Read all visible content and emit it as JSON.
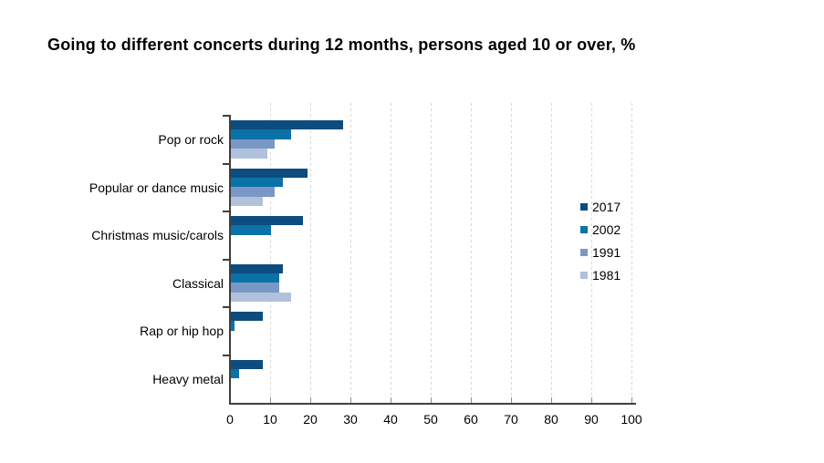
{
  "page": {
    "background": "#ffffff"
  },
  "chart_data": {
    "type": "bar",
    "orientation": "horizontal",
    "title": "Going to different concerts during 12 months, persons aged 10 or over, %",
    "categories": [
      "Pop or rock",
      "Popular or dance music",
      "Christmas music/carols",
      "Classical",
      "Rap or hip hop",
      "Heavy metal"
    ],
    "series": [
      {
        "name": "2017",
        "color": "#0e4c7d",
        "values": [
          28,
          19,
          18,
          13,
          8,
          8
        ]
      },
      {
        "name": "2002",
        "color": "#0b72a8",
        "values": [
          15,
          13,
          10,
          12,
          1,
          2
        ]
      },
      {
        "name": "1991",
        "color": "#7b97c5",
        "values": [
          11,
          11,
          null,
          12,
          null,
          null
        ]
      },
      {
        "name": "1981",
        "color": "#b0c1dc",
        "values": [
          9,
          8,
          null,
          15,
          null,
          null
        ]
      }
    ],
    "xlim": [
      0,
      100
    ],
    "xticks": [
      0,
      10,
      20,
      30,
      40,
      50,
      60,
      70,
      80,
      90,
      100
    ],
    "xlabel": "",
    "ylabel": "",
    "grid": "vertical-dashed",
    "gridline_color": "#d8d8d8",
    "axis_color": "#3f3f3f",
    "text_color": "#000000",
    "legend_position": "inside-right",
    "legend_labels": [
      "2017",
      "2002",
      "1991",
      "1981"
    ]
  }
}
